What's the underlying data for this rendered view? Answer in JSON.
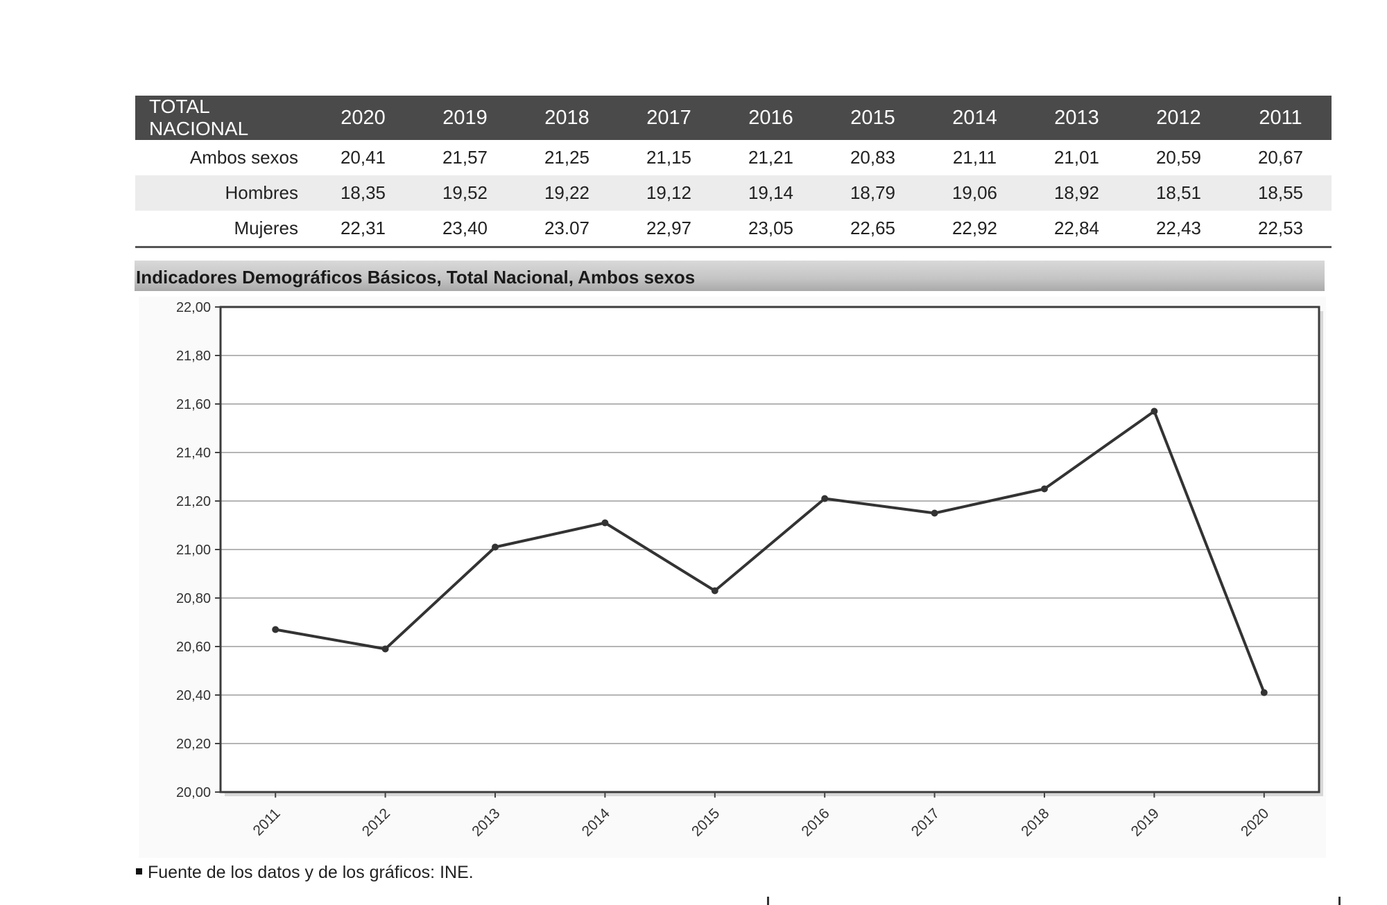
{
  "table": {
    "corner_label": "TOTAL NACIONAL",
    "years": [
      "2020",
      "2019",
      "2018",
      "2017",
      "2016",
      "2015",
      "2014",
      "2013",
      "2012",
      "2011"
    ],
    "rows": [
      {
        "label": "Ambos sexos",
        "values": [
          "20,41",
          "21,57",
          "21,25",
          "21,15",
          "21,21",
          "20,83",
          "21,11",
          "21,01",
          "20,59",
          "20,67"
        ]
      },
      {
        "label": "Hombres",
        "values": [
          "18,35",
          "19,52",
          "19,22",
          "19,12",
          "19,14",
          "18,79",
          "19,06",
          "18,92",
          "18,51",
          "18,55"
        ]
      },
      {
        "label": "Mujeres",
        "values": [
          "22,31",
          "23,40",
          "23.07",
          "22,97",
          "23,05",
          "22,65",
          "22,92",
          "22,84",
          "22,43",
          "22,53"
        ]
      }
    ]
  },
  "chart_data": {
    "type": "line",
    "title": "Indicadores Demográficos Básicos, Total Nacional, Ambos sexos",
    "xlabel": "",
    "ylabel": "",
    "categories": [
      "2011",
      "2012",
      "2013",
      "2014",
      "2015",
      "2016",
      "2017",
      "2018",
      "2019",
      "2020"
    ],
    "series": [
      {
        "values": [
          20.67,
          20.59,
          21.01,
          21.11,
          20.83,
          21.21,
          21.15,
          21.25,
          21.57,
          20.41
        ]
      }
    ],
    "ylim": [
      20.0,
      22.0
    ],
    "yticks": [
      20.0,
      20.2,
      20.4,
      20.6,
      20.8,
      21.0,
      21.2,
      21.4,
      21.6,
      21.8,
      22.0
    ],
    "ytick_labels": [
      "20,00",
      "20,20",
      "20,40",
      "20,60",
      "20,80",
      "21,00",
      "21,20",
      "21,40",
      "21,60",
      "21,80",
      "22,00"
    ],
    "grid": true,
    "legend": "none",
    "line_color": "#333333"
  },
  "footer": {
    "source": "Fuente de los datos y de los gráficos: INE."
  }
}
